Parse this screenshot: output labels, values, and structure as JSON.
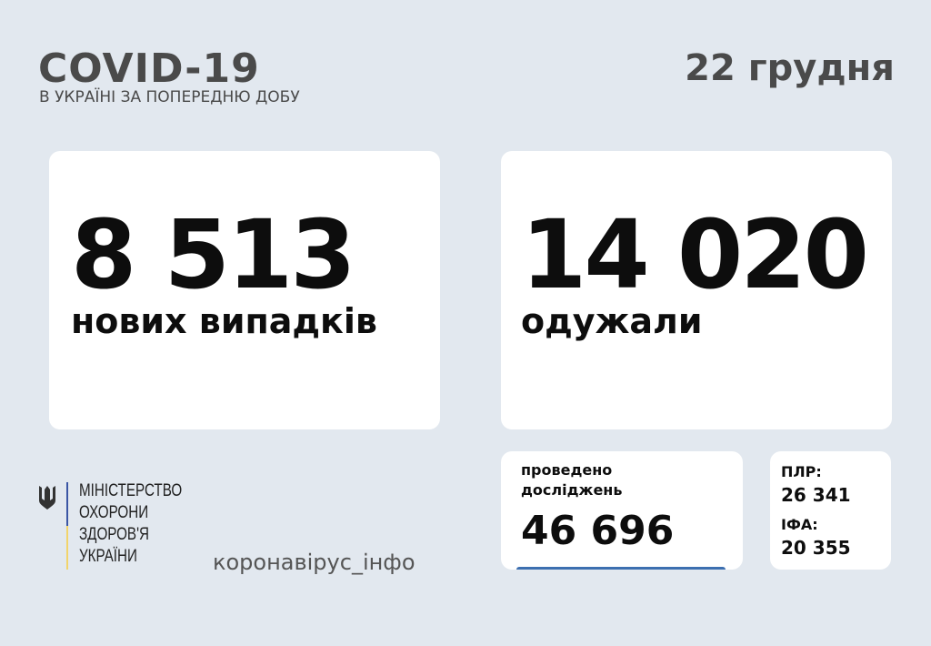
{
  "header": {
    "title": "COVID-19",
    "subtitle": "В УКРАЇНІ ЗА ПОПЕРЕДНЮ ДОБУ",
    "date": "22 грудня"
  },
  "cases": {
    "value": "8 513",
    "label": "нових випадків"
  },
  "recovered": {
    "value": "14 020",
    "label": "одужали"
  },
  "tests": {
    "label_line1": "проведено",
    "label_line2": "досліджень",
    "value": "46 696"
  },
  "breakdown": {
    "pcr_label": "ПЛР:",
    "pcr_value": "26 341",
    "elisa_label": "ІФА:",
    "elisa_value": "20 355"
  },
  "ministry": {
    "lines": [
      "МІНІСТЕРСТВО",
      "ОХОРОНИ",
      "ЗДОРОВ'Я",
      "УКРАЇНИ"
    ]
  },
  "hashtag": "коронавірус_інфо",
  "colors": {
    "accent": "#3d6fb0",
    "flag_blue": "#3a55a4",
    "flag_yellow": "#f2d46b"
  }
}
